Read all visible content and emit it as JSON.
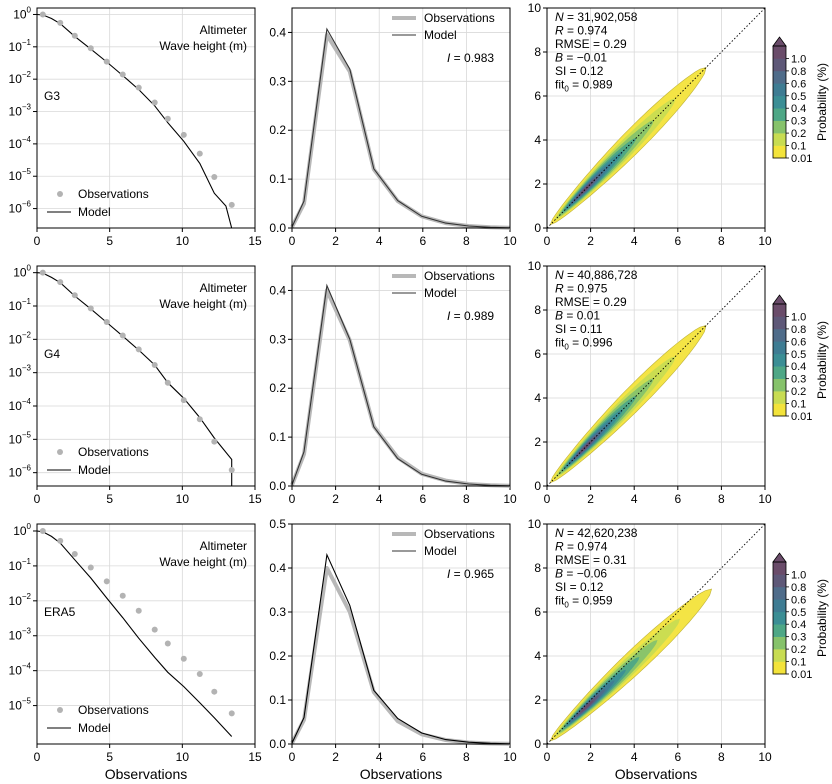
{
  "chart_data": {
    "type": "figure-grid",
    "xlabel": "Observations",
    "colorbar": {
      "label": "Probability (%)",
      "ticks": [
        "0.01",
        "0.1",
        "0.2",
        "0.3",
        "0.4",
        "0.5",
        "0.6",
        "0.8",
        "1.0"
      ],
      "colors": [
        "#f3e33b",
        "#c8dc52",
        "#86c26b",
        "#4ea786",
        "#3b8e95",
        "#3e7c93",
        "#4f6c8a",
        "#5e5878",
        "#6a4c6a"
      ]
    },
    "rows": [
      {
        "label": "G3",
        "dist": {
          "type": "line",
          "yscale": "log",
          "xlim": [
            0,
            15
          ],
          "ylim_exp": [
            -6.6,
            0.2
          ],
          "xticks": [
            0,
            5,
            10,
            15
          ],
          "yticklabels": [
            {
              "base": "10",
              "exp": "0"
            },
            {
              "base": "10",
              "exp": "−1"
            },
            {
              "base": "10",
              "exp": "−2"
            },
            {
              "base": "10",
              "exp": "−3"
            },
            {
              "base": "10",
              "exp": "−4"
            },
            {
              "base": "10",
              "exp": "−5"
            },
            {
              "base": "10",
              "exp": "−6"
            }
          ],
          "title_lines": [
            "Altimeter",
            "Wave height (m)"
          ],
          "legend": [
            "Observations",
            "Model"
          ],
          "obs_x": [
            0.4,
            1.6,
            2.6,
            3.7,
            4.8,
            5.9,
            7.0,
            8.1,
            9.0,
            10.1,
            11.2,
            12.2,
            13.4
          ],
          "obs_y": [
            1.0,
            0.55,
            0.22,
            0.09,
            0.035,
            0.014,
            0.0055,
            0.0019,
            0.0006,
            0.00019,
            5e-05,
            9.5e-06,
            1.3e-06
          ],
          "model_x": [
            0.0,
            0.4,
            1.0,
            1.6,
            2.6,
            3.7,
            4.8,
            5.9,
            7.0,
            8.1,
            9.0,
            10.1,
            11.2,
            12.2,
            13.0,
            13.4
          ],
          "model_y": [
            1.0,
            0.97,
            0.75,
            0.52,
            0.21,
            0.085,
            0.034,
            0.013,
            0.0048,
            0.0015,
            0.00045,
            0.00012,
            2.5e-05,
            3e-06,
            1.2e-06,
            2.5e-07
          ]
        },
        "pdf": {
          "type": "line",
          "xlim": [
            0,
            10
          ],
          "ylim": [
            0,
            0.45
          ],
          "xticks": [
            0,
            2,
            4,
            6,
            8,
            10
          ],
          "yticks": [
            0.0,
            0.1,
            0.2,
            0.3,
            0.4
          ],
          "yticklabels": [
            "0.0",
            "0.1",
            "0.2",
            "0.3",
            "0.4"
          ],
          "legend": [
            "Observations",
            "Model"
          ],
          "stat_name": "I",
          "stat_value": " = 0.983",
          "x": [
            0.0,
            0.55,
            1.6,
            2.65,
            3.75,
            4.85,
            5.95,
            7.05,
            8.1,
            9.1,
            10.0
          ],
          "obs": [
            0.002,
            0.05,
            0.395,
            0.32,
            0.12,
            0.055,
            0.024,
            0.01,
            0.004,
            0.0015,
            0.0005
          ],
          "model": [
            0.002,
            0.055,
            0.407,
            0.325,
            0.121,
            0.056,
            0.024,
            0.01,
            0.004,
            0.0015,
            0.0005
          ]
        },
        "scatter": {
          "type": "heatmap",
          "xlim": [
            0,
            10
          ],
          "ylim": [
            0,
            10
          ],
          "xticks": [
            0,
            2,
            4,
            6,
            8,
            10
          ],
          "yticks": [
            0,
            2,
            4,
            6,
            8,
            10
          ],
          "stats": [
            {
              "name": "N",
              "value": " = 31,902,058"
            },
            {
              "name": "R",
              "value": " = 0.974"
            },
            {
              "name": "",
              "value": "RMSE = 0.29"
            },
            {
              "name": "B",
              "value": " = −0.01"
            },
            {
              "name": "",
              "value": "SI = 0.12"
            },
            {
              "name": "",
              "value": "fit",
              "sub": "0",
              "tail": " = 0.989"
            }
          ],
          "core_angle_deg": 45
        }
      },
      {
        "label": "G4",
        "dist": {
          "type": "line",
          "yscale": "log",
          "xlim": [
            0,
            15
          ],
          "ylim_exp": [
            -6.4,
            0.2
          ],
          "xticks": [
            0,
            5,
            10,
            15
          ],
          "yticklabels": [
            {
              "base": "10",
              "exp": "0"
            },
            {
              "base": "10",
              "exp": "−1"
            },
            {
              "base": "10",
              "exp": "−2"
            },
            {
              "base": "10",
              "exp": "−3"
            },
            {
              "base": "10",
              "exp": "−4"
            },
            {
              "base": "10",
              "exp": "−5"
            },
            {
              "base": "10",
              "exp": "−6"
            }
          ],
          "title_lines": [
            "Altimeter",
            "Wave height (m)"
          ],
          "legend": [
            "Observations",
            "Model"
          ],
          "obs_x": [
            0.4,
            1.6,
            2.6,
            3.7,
            4.8,
            5.9,
            7.0,
            8.1,
            9.0,
            10.1,
            11.2,
            12.2,
            13.4
          ],
          "obs_y": [
            1.0,
            0.52,
            0.21,
            0.085,
            0.033,
            0.013,
            0.005,
            0.0017,
            0.0005,
            0.00015,
            4e-05,
            8.5e-06,
            1.2e-06
          ],
          "model_x": [
            0.0,
            0.4,
            1.0,
            1.6,
            2.6,
            3.7,
            4.8,
            5.9,
            7.0,
            8.1,
            9.0,
            10.1,
            11.2,
            12.2,
            13.4,
            13.4
          ],
          "model_y": [
            1.0,
            0.97,
            0.72,
            0.5,
            0.2,
            0.082,
            0.032,
            0.0125,
            0.0048,
            0.0017,
            0.0005,
            0.00017,
            4.5e-05,
            1.1e-05,
            2.5e-06,
            4e-07
          ]
        },
        "pdf": {
          "type": "line",
          "xlim": [
            0,
            10
          ],
          "ylim": [
            0,
            0.45
          ],
          "xticks": [
            0,
            2,
            4,
            6,
            8,
            10
          ],
          "yticks": [
            0.0,
            0.1,
            0.2,
            0.3,
            0.4
          ],
          "yticklabels": [
            "0.0",
            "0.1",
            "0.2",
            "0.3",
            "0.4"
          ],
          "legend": [
            "Observations",
            "Model"
          ],
          "stat_name": "I",
          "stat_value": " = 0.989",
          "x": [
            0.0,
            0.55,
            1.6,
            2.65,
            3.75,
            4.85,
            5.95,
            7.05,
            8.1,
            9.1,
            10.0
          ],
          "obs": [
            0.002,
            0.065,
            0.4,
            0.298,
            0.122,
            0.058,
            0.025,
            0.011,
            0.004,
            0.0015,
            0.0005
          ],
          "model": [
            0.002,
            0.07,
            0.41,
            0.3,
            0.121,
            0.056,
            0.024,
            0.01,
            0.004,
            0.0015,
            0.0005
          ]
        },
        "scatter": {
          "type": "heatmap",
          "xlim": [
            0,
            10
          ],
          "ylim": [
            0,
            10
          ],
          "xticks": [
            0,
            2,
            4,
            6,
            8,
            10
          ],
          "yticks": [
            0,
            2,
            4,
            6,
            8,
            10
          ],
          "stats": [
            {
              "name": "N",
              "value": " = 40,886,728"
            },
            {
              "name": "R",
              "value": " = 0.975"
            },
            {
              "name": "",
              "value": "RMSE = 0.29"
            },
            {
              "name": "B",
              "value": " = 0.01"
            },
            {
              "name": "",
              "value": "SI = 0.11"
            },
            {
              "name": "",
              "value": "fit",
              "sub": "0",
              "tail": " = 0.996"
            }
          ],
          "core_angle_deg": 45
        }
      },
      {
        "label": "ERA5",
        "dist": {
          "type": "line",
          "yscale": "log",
          "xlim": [
            0,
            15
          ],
          "ylim_exp": [
            -6.1,
            0.2
          ],
          "xticks": [
            0,
            5,
            10,
            15
          ],
          "yticklabels": [
            {
              "base": "10",
              "exp": "0"
            },
            {
              "base": "10",
              "exp": "−1"
            },
            {
              "base": "10",
              "exp": "−2"
            },
            {
              "base": "10",
              "exp": "−3"
            },
            {
              "base": "10",
              "exp": "−4"
            },
            {
              "base": "10",
              "exp": "−5"
            }
          ],
          "title_lines": [
            "Altimeter",
            "Wave height (m)"
          ],
          "legend": [
            "Observations",
            "Model"
          ],
          "obs_x": [
            0.4,
            1.6,
            2.6,
            3.7,
            4.8,
            5.9,
            7.0,
            8.1,
            9.0,
            10.1,
            11.2,
            12.2,
            13.4
          ],
          "obs_y": [
            1.0,
            0.52,
            0.22,
            0.09,
            0.036,
            0.014,
            0.0052,
            0.0015,
            0.0006,
            0.00022,
            8e-05,
            2.5e-05,
            6e-06
          ],
          "model_x": [
            0.0,
            0.4,
            1.0,
            1.6,
            2.6,
            3.7,
            4.8,
            5.9,
            7.0,
            8.1,
            9.0,
            10.1,
            11.2,
            12.2,
            13.4
          ],
          "model_y": [
            1.0,
            0.95,
            0.7,
            0.45,
            0.15,
            0.045,
            0.012,
            0.0033,
            0.00085,
            0.00024,
            9e-05,
            3.5e-05,
            1.2e-05,
            4.5e-06,
            1.3e-06
          ]
        },
        "pdf": {
          "type": "line",
          "xlim": [
            0,
            10
          ],
          "ylim": [
            0,
            0.5
          ],
          "xticks": [
            0,
            2,
            4,
            6,
            8,
            10
          ],
          "yticks": [
            0.0,
            0.1,
            0.2,
            0.3,
            0.4,
            0.5
          ],
          "yticklabels": [
            "0.0",
            "0.1",
            "0.2",
            "0.3",
            "0.4",
            "0.5"
          ],
          "legend": [
            "Observations",
            "Model"
          ],
          "stat_name": "I",
          "stat_value": " = 0.965",
          "x": [
            0.0,
            0.55,
            1.6,
            2.65,
            3.75,
            4.85,
            5.95,
            7.05,
            8.1,
            9.1,
            10.0
          ],
          "obs": [
            0.002,
            0.055,
            0.4,
            0.3,
            0.118,
            0.052,
            0.022,
            0.009,
            0.0035,
            0.0012,
            0.0004
          ],
          "model": [
            0.002,
            0.06,
            0.43,
            0.315,
            0.122,
            0.058,
            0.025,
            0.01,
            0.004,
            0.0015,
            0.0005
          ]
        },
        "scatter": {
          "type": "heatmap",
          "xlim": [
            0,
            10
          ],
          "ylim": [
            0,
            10
          ],
          "xticks": [
            0,
            2,
            4,
            6,
            8,
            10
          ],
          "yticks": [
            0,
            2,
            4,
            6,
            8,
            10
          ],
          "stats": [
            {
              "name": "N",
              "value": " = 42,620,238"
            },
            {
              "name": "R",
              "value": " = 0.974"
            },
            {
              "name": "",
              "value": "RMSE = 0.31"
            },
            {
              "name": "B",
              "value": " = −0.06"
            },
            {
              "name": "",
              "value": "SI = 0.12"
            },
            {
              "name": "",
              "value": "fit",
              "sub": "0",
              "tail": " = 0.959"
            }
          ],
          "core_angle_deg": 43
        }
      }
    ]
  }
}
